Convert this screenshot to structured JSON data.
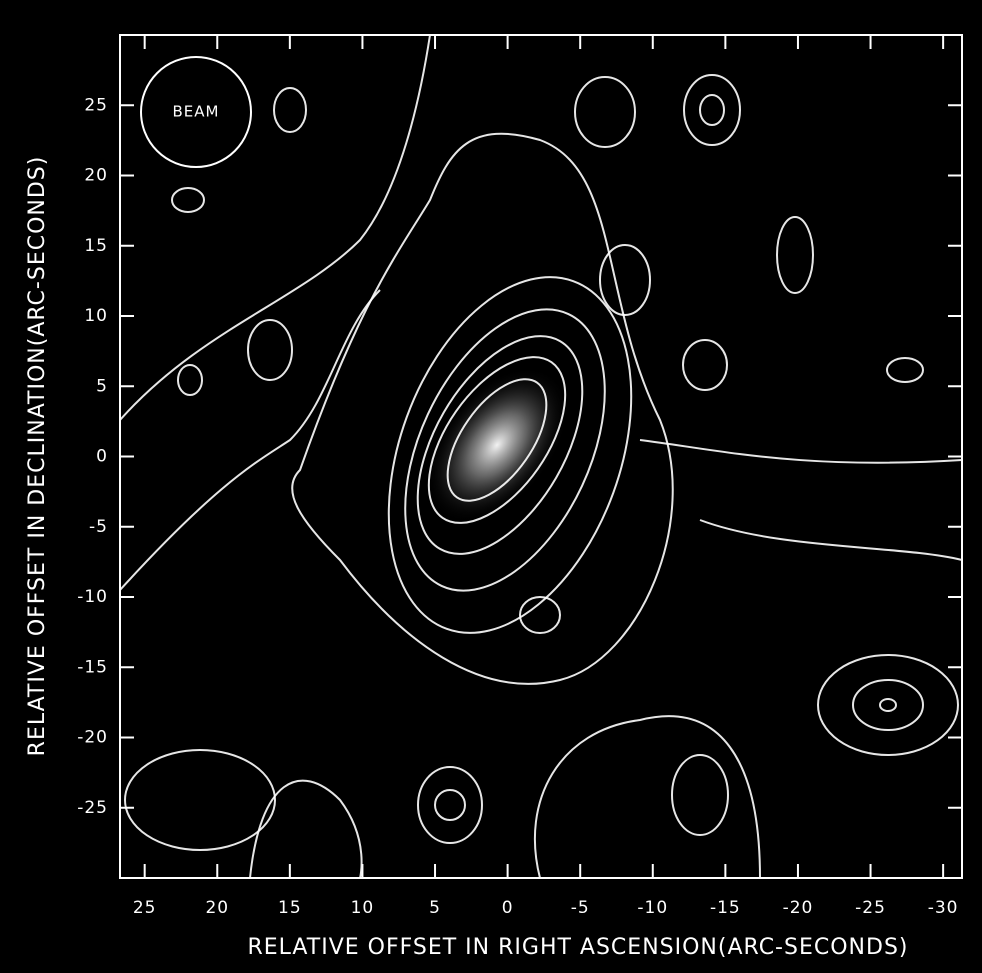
{
  "chart_data": {
    "type": "contour",
    "xlabel": "RELATIVE OFFSET IN RIGHT ASCENSION(ARC-SECONDS)",
    "ylabel": "RELATIVE OFFSET IN DECLINATION(ARC-SECONDS)",
    "beam_label": "BEAM",
    "xlim": [
      26.7,
      -31.3
    ],
    "ylim": [
      -30,
      30
    ],
    "xticks": [
      25,
      20,
      15,
      10,
      5,
      0,
      -5,
      -10,
      -15,
      -20,
      -25,
      -30
    ],
    "yticks": [
      25,
      20,
      15,
      10,
      5,
      0,
      -5,
      -10,
      -15,
      -20,
      -25
    ],
    "color": "#ffffff"
  }
}
